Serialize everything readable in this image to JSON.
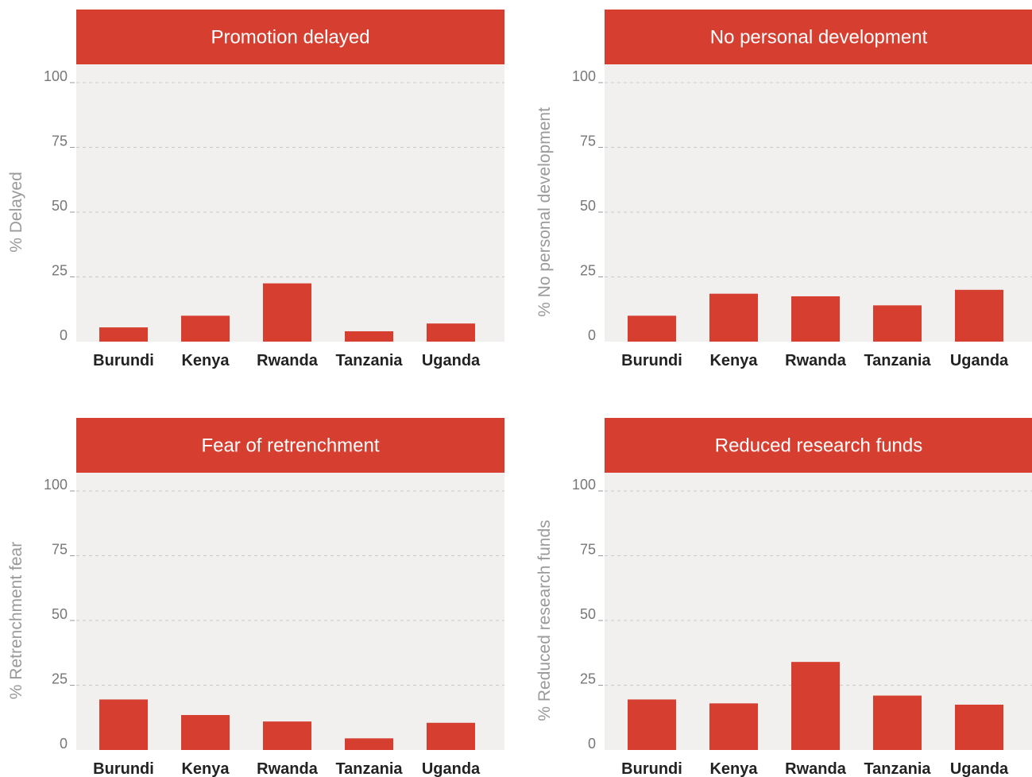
{
  "colors": {
    "bar": "#d63e30",
    "header": "#d63e30",
    "plot_background": "#f2f0ef",
    "grid": "#c9c9c9",
    "title_text": "#ffffff"
  },
  "chart_data": [
    {
      "type": "bar",
      "title": "Promotion delayed",
      "xlabel": "",
      "ylabel": "% Delayed",
      "categories": [
        "Burundi",
        "Kenya",
        "Rwanda",
        "Tanzania",
        "Uganda"
      ],
      "values": [
        5.5,
        10,
        22.5,
        4,
        7
      ],
      "ylim": [
        0,
        100
      ],
      "yticks": [
        "0",
        "25",
        "50",
        "75",
        "100"
      ],
      "grid": true,
      "legend": "none"
    },
    {
      "type": "bar",
      "title": "No personal development",
      "xlabel": "",
      "ylabel": "% No personal development",
      "categories": [
        "Burundi",
        "Kenya",
        "Rwanda",
        "Tanzania",
        "Uganda"
      ],
      "values": [
        10,
        18.5,
        17.5,
        14,
        20
      ],
      "ylim": [
        0,
        100
      ],
      "yticks": [
        "0",
        "25",
        "50",
        "75",
        "100"
      ],
      "grid": true,
      "legend": "none"
    },
    {
      "type": "bar",
      "title": "Fear of retrenchment",
      "xlabel": "",
      "ylabel": "% Retrenchment fear",
      "categories": [
        "Burundi",
        "Kenya",
        "Rwanda",
        "Tanzania",
        "Uganda"
      ],
      "values": [
        19.5,
        13.5,
        11,
        4.5,
        10.5
      ],
      "ylim": [
        0,
        100
      ],
      "yticks": [
        "0",
        "25",
        "50",
        "75",
        "100"
      ],
      "grid": true,
      "legend": "none"
    },
    {
      "type": "bar",
      "title": "Reduced research funds",
      "xlabel": "",
      "ylabel": "% Reduced research funds",
      "categories": [
        "Burundi",
        "Kenya",
        "Rwanda",
        "Tanzania",
        "Uganda"
      ],
      "values": [
        19.5,
        18,
        34,
        21,
        17.5
      ],
      "ylim": [
        0,
        100
      ],
      "yticks": [
        "0",
        "25",
        "50",
        "75",
        "100"
      ],
      "grid": true,
      "legend": "none"
    }
  ]
}
